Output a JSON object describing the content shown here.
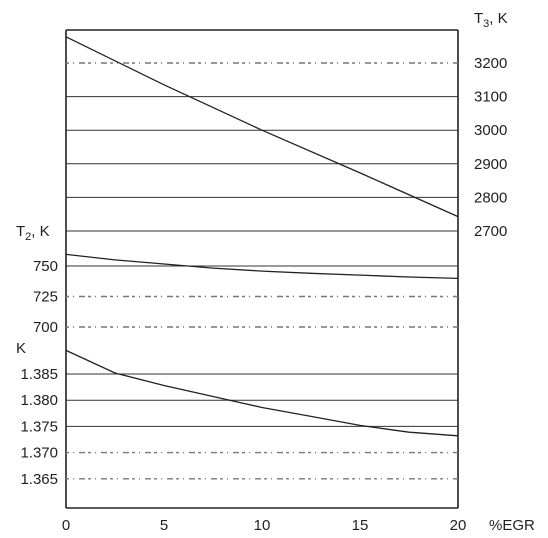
{
  "chart_data": {
    "type": "line",
    "x": {
      "label": "%EGR",
      "min": 0,
      "max": 20,
      "ticks": [
        "0",
        "5",
        "10",
        "15",
        "20"
      ]
    },
    "panels": [
      {
        "id": "T3",
        "axis_side": "right",
        "label_base": "T",
        "label_sub": "3",
        "label_unit": ", K",
        "ticks": [
          "3200",
          "3100",
          "3000",
          "2900",
          "2800",
          "2700"
        ],
        "range": [
          2700,
          3200
        ],
        "series": [
          {
            "x": [
              0,
              5,
              10,
              15,
              20
            ],
            "y": [
              3278,
              3135,
              3000,
              2873,
              2743
            ]
          }
        ]
      },
      {
        "id": "T2",
        "axis_side": "left",
        "label_base": "T",
        "label_sub": "2",
        "label_unit": ", K",
        "ticks": [
          "750",
          "725",
          "700"
        ],
        "range": [
          700,
          750
        ],
        "series": [
          {
            "x": [
              0,
              2.5,
              5,
              7.5,
              10,
              12.5,
              15,
              17.5,
              20
            ],
            "y": [
              759.5,
              755,
              751.6,
              748.3,
              745.8,
              744,
              742.5,
              741,
              739.8
            ]
          }
        ]
      },
      {
        "id": "K",
        "axis_side": "left",
        "label_base": "K",
        "label_sub": "",
        "label_unit": "",
        "ticks": [
          "1.385",
          "1.380",
          "1.375",
          "1.370",
          "1.365"
        ],
        "range": [
          1.365,
          1.385
        ],
        "series": [
          {
            "x": [
              0,
              2.5,
              5,
              7.5,
              10,
              12.5,
              15,
              17.5,
              20
            ],
            "y": [
              1.3895,
              1.3852,
              1.3828,
              1.3807,
              1.3786,
              1.3769,
              1.3752,
              1.3739,
              1.3732
            ]
          }
        ]
      }
    ]
  }
}
